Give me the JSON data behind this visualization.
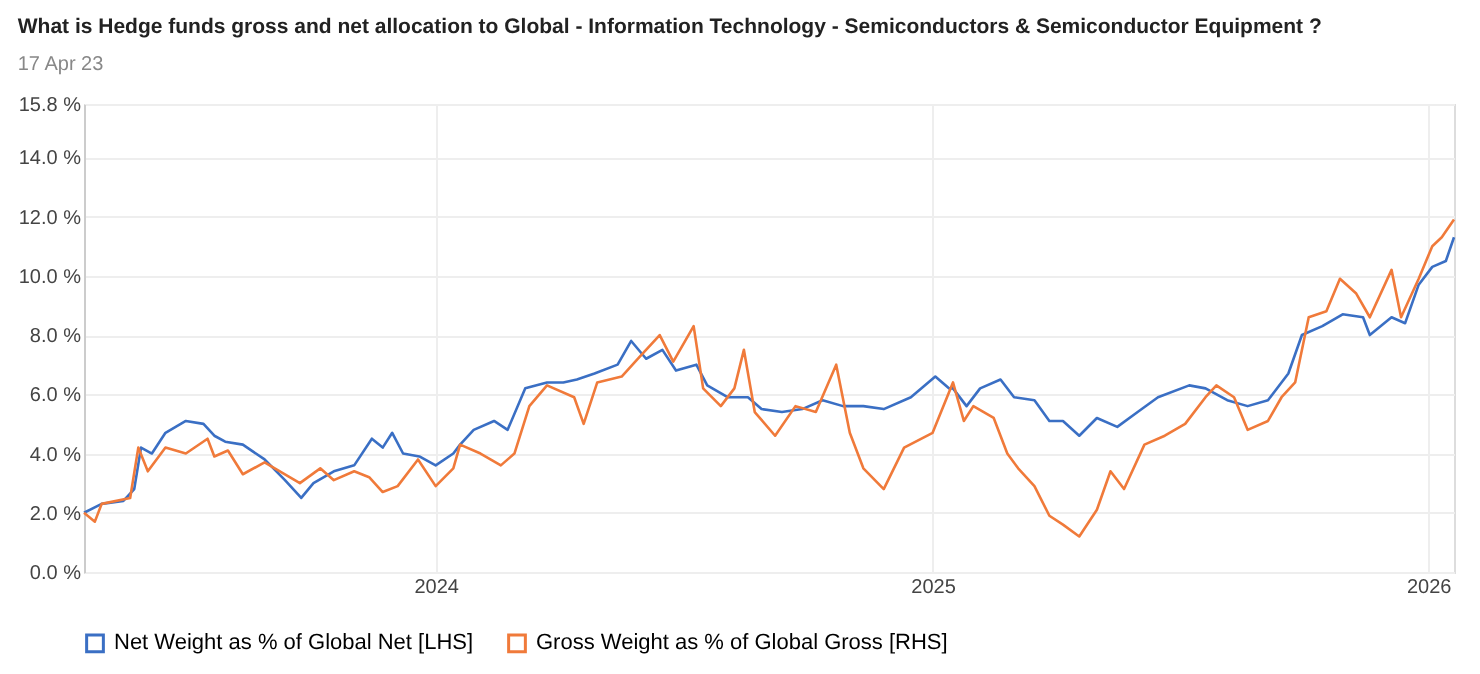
{
  "chart_data": {
    "type": "line",
    "title": "What is Hedge funds gross and net allocation to Global - Information Technology - Semiconductors & Semiconductor Equipment ?",
    "subtitle": "17 Apr 23",
    "xlim": [
      "2023-04-17",
      "2026-01-20"
    ],
    "xticks": [
      "2024",
      "2025",
      "2026"
    ],
    "ylim": [
      0,
      15.8
    ],
    "yticks": [
      {
        "value": 0,
        "label": "0.0 %"
      },
      {
        "value": 2,
        "label": "2.0 %"
      },
      {
        "value": 4,
        "label": "4.0 %"
      },
      {
        "value": 6,
        "label": "6.0 %"
      },
      {
        "value": 8,
        "label": "8.0 %"
      },
      {
        "value": 10,
        "label": "10.0 %"
      },
      {
        "value": 12,
        "label": "12.0 %"
      },
      {
        "value": 14,
        "label": "14.0 %"
      },
      {
        "value": 15.8,
        "label": "15.8 %"
      }
    ],
    "grid": true,
    "legend": "bottom",
    "line_style": "solid",
    "marker": "none",
    "series": [
      {
        "name": "Net Weight as % of Global Net [LHS]",
        "color": "#3a6fc4",
        "x": [
          "2023-04-17",
          "2023-04-30",
          "2023-05-16",
          "2023-05-24",
          "2023-05-29",
          "2023-06-06",
          "2023-06-16",
          "2023-07-01",
          "2023-07-14",
          "2023-07-22",
          "2023-07-30",
          "2023-08-12",
          "2023-08-28",
          "2023-09-12",
          "2023-09-24",
          "2023-10-03",
          "2023-10-18",
          "2023-11-02",
          "2023-11-15",
          "2023-11-23",
          "2023-11-30",
          "2023-12-08",
          "2023-12-20",
          "2024-01-01",
          "2024-01-14",
          "2024-01-19",
          "2024-01-29",
          "2024-02-13",
          "2024-02-23",
          "2024-03-07",
          "2024-03-23",
          "2024-04-04",
          "2024-04-14",
          "2024-04-27",
          "2024-05-14",
          "2024-05-24",
          "2024-06-04",
          "2024-06-16",
          "2024-06-26",
          "2024-07-11",
          "2024-07-19",
          "2024-08-03",
          "2024-08-18",
          "2024-08-28",
          "2024-09-12",
          "2024-09-27",
          "2024-10-12",
          "2024-10-27",
          "2024-11-11",
          "2024-11-26",
          "2024-12-16",
          "2025-01-03",
          "2025-01-13",
          "2025-01-16",
          "2025-01-26",
          "2025-02-05",
          "2025-02-20",
          "2025-03-02",
          "2025-03-17",
          "2025-03-28",
          "2025-04-07",
          "2025-04-19",
          "2025-05-02",
          "2025-05-17",
          "2025-06-01",
          "2025-06-16",
          "2025-07-09",
          "2025-07-21",
          "2025-08-06",
          "2025-08-21",
          "2025-09-05",
          "2025-09-20",
          "2025-09-30",
          "2025-10-15",
          "2025-10-30",
          "2025-11-14",
          "2025-11-19",
          "2025-12-05",
          "2025-12-15",
          "2025-12-25",
          "2026-01-04",
          "2026-01-14",
          "2026-01-20"
        ],
        "values": [
          2.0,
          2.3,
          2.4,
          2.8,
          4.2,
          4.0,
          4.7,
          5.1,
          5.0,
          4.6,
          4.4,
          4.3,
          3.8,
          3.1,
          2.5,
          3.0,
          3.4,
          3.6,
          4.5,
          4.2,
          4.7,
          4.0,
          3.9,
          3.6,
          4.0,
          4.3,
          4.8,
          5.1,
          4.8,
          6.2,
          6.4,
          6.4,
          6.5,
          6.7,
          7.0,
          7.8,
          7.2,
          7.5,
          6.8,
          7.0,
          6.3,
          5.9,
          5.9,
          5.5,
          5.4,
          5.5,
          5.8,
          5.6,
          5.6,
          5.5,
          5.9,
          6.6,
          6.2,
          6.2,
          5.6,
          6.2,
          6.5,
          5.9,
          5.8,
          5.1,
          5.1,
          4.6,
          5.2,
          4.9,
          5.4,
          5.9,
          6.3,
          6.2,
          5.8,
          5.6,
          5.8,
          6.7,
          8.0,
          8.3,
          8.7,
          8.6,
          8.0,
          8.6,
          8.4,
          9.7,
          10.3,
          10.5,
          11.3
        ]
      },
      {
        "name": "Gross Weight as % of Global Gross [RHS]",
        "color": "#f07a3a",
        "x": [
          "2023-04-17",
          "2023-04-25",
          "2023-04-30",
          "2023-05-21",
          "2023-05-27",
          "2023-06-03",
          "2023-06-16",
          "2023-07-01",
          "2023-07-17",
          "2023-07-22",
          "2023-08-01",
          "2023-08-12",
          "2023-08-28",
          "2023-09-12",
          "2023-09-23",
          "2023-10-08",
          "2023-10-18",
          "2023-11-02",
          "2023-11-13",
          "2023-11-23",
          "2023-12-04",
          "2023-12-19",
          "2024-01-01",
          "2024-01-14",
          "2024-01-19",
          "2024-02-03",
          "2024-02-18",
          "2024-02-28",
          "2024-03-10",
          "2024-03-23",
          "2024-04-12",
          "2024-04-19",
          "2024-04-29",
          "2024-05-17",
          "2024-05-29",
          "2024-06-14",
          "2024-06-24",
          "2024-07-09",
          "2024-07-16",
          "2024-07-29",
          "2024-08-08",
          "2024-08-15",
          "2024-08-23",
          "2024-09-07",
          "2024-09-22",
          "2024-10-07",
          "2024-10-22",
          "2024-11-01",
          "2024-11-11",
          "2024-11-26",
          "2024-12-11",
          "2025-01-01",
          "2025-01-16",
          "2025-01-24",
          "2025-01-31",
          "2025-02-15",
          "2025-02-25",
          "2025-03-05",
          "2025-03-17",
          "2025-03-28",
          "2025-04-07",
          "2025-04-19",
          "2025-05-02",
          "2025-05-12",
          "2025-05-22",
          "2025-06-06",
          "2025-06-21",
          "2025-07-06",
          "2025-07-21",
          "2025-07-29",
          "2025-08-11",
          "2025-08-21",
          "2025-09-05",
          "2025-09-15",
          "2025-09-25",
          "2025-10-05",
          "2025-10-18",
          "2025-10-28",
          "2025-11-09",
          "2025-11-19",
          "2025-12-05",
          "2025-12-12",
          "2025-12-25",
          "2026-01-04",
          "2026-01-11",
          "2026-01-20"
        ],
        "values": [
          2.0,
          1.7,
          2.3,
          2.5,
          4.2,
          3.4,
          4.2,
          4.0,
          4.5,
          3.9,
          4.1,
          3.3,
          3.7,
          3.3,
          3.0,
          3.5,
          3.1,
          3.4,
          3.2,
          2.7,
          2.9,
          3.8,
          2.9,
          3.5,
          4.3,
          4.0,
          3.6,
          4.0,
          5.6,
          6.3,
          5.9,
          5.0,
          6.4,
          6.6,
          7.2,
          8.0,
          7.1,
          8.3,
          6.2,
          5.6,
          6.2,
          7.5,
          5.4,
          4.6,
          5.6,
          5.4,
          7.0,
          4.7,
          3.5,
          2.8,
          4.2,
          4.7,
          6.4,
          5.1,
          5.6,
          5.2,
          4.0,
          3.5,
          2.9,
          1.9,
          1.6,
          1.2,
          2.1,
          3.4,
          2.8,
          4.3,
          4.6,
          5.0,
          5.9,
          6.3,
          5.9,
          4.8,
          5.1,
          5.9,
          6.4,
          8.6,
          8.8,
          9.9,
          9.4,
          8.6,
          10.2,
          8.6,
          9.9,
          11.0,
          11.3,
          11.9
        ]
      }
    ]
  }
}
